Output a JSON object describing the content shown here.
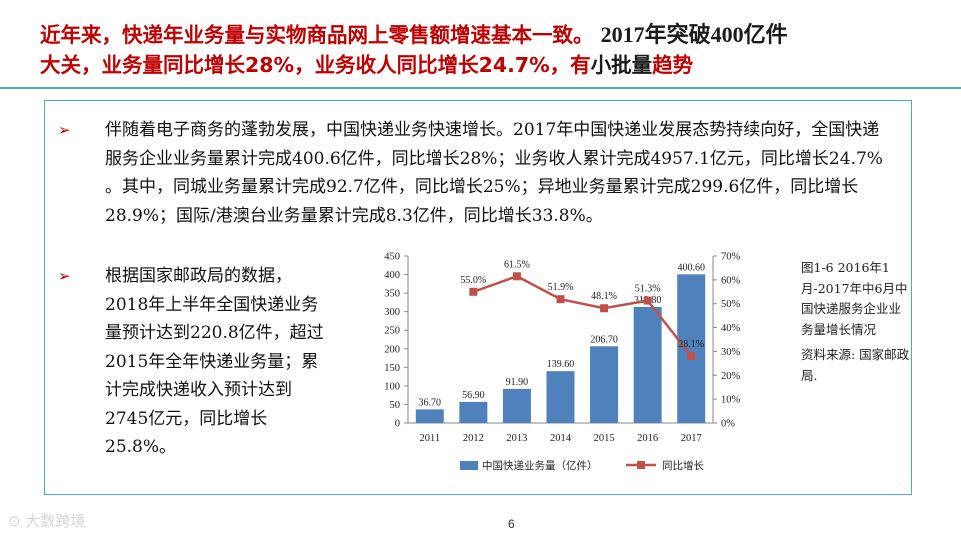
{
  "slide": {
    "title_part1": "近年来，快递年业务量与实物商品网上零售额增速基本一致。",
    "title_part2": "2017年突破400亿件",
    "title_line2a": "大关，业务量同比增长28%，业务收人同比增长24.7%，有",
    "title_line2b": "小批量",
    "title_line2c": "趋势",
    "bullet_mark": "➢",
    "bullet1": "伴随着电子商务的蓬勃发展，中国快递业务快速增长。2017年中国快递业发展态势持续向好，全国快递服务企业业务量累计完成400.6亿件，同比增长28%；业务收人累计完成4957.1亿元，同比增长24.7% 。其中，同城业务量累计完成92.7亿件，同比增长25%；异地业务量累计完成299.6亿件，同比增长28.9%；国际/港澳台业务量累计完成8.3亿件，同比增长33.8%。",
    "bullet2": "根据国家邮政局的数据，2018年上半年全国快递业务量预计达到220.8亿件，超过2015年全年快递业务量；累计完成快递收入预计达到2745亿元，同比增长25.8%。",
    "caption": "图1-6  2016年1月-2017年中6月中国快递服务企业业务量增长情况",
    "source": "资料来源: 国家邮政局.",
    "page_number": "6",
    "logo_text": "大数跨境"
  },
  "colors": {
    "title_red": "#c00000",
    "bar_blue": "#4f81bd",
    "line_red": "#c0504d",
    "accent_teal": "#4bacc6"
  },
  "chart_data": {
    "type": "bar",
    "categories": [
      "2011",
      "2012",
      "2013",
      "2014",
      "2015",
      "2016",
      "2017"
    ],
    "series": [
      {
        "name": "中国快递业务量（亿件）",
        "kind": "bar",
        "axis": "left",
        "values": [
          36.7,
          56.9,
          91.9,
          139.6,
          206.7,
          312.8,
          400.6
        ],
        "labels": [
          "36.70",
          "56.90",
          "91.90",
          "139.60",
          "206.70",
          "312.80",
          "400.60"
        ]
      },
      {
        "name": "同比增长",
        "kind": "line",
        "axis": "right",
        "values": [
          null,
          55.0,
          61.5,
          51.9,
          48.1,
          51.3,
          28.1
        ],
        "labels": [
          "",
          "55.0%",
          "61.5%",
          "51.9%",
          "48.1%",
          "51.3%",
          "28.1%"
        ]
      }
    ],
    "y_left": {
      "min": 0,
      "max": 450,
      "step": 50,
      "ticks": [
        "0",
        "50",
        "100",
        "150",
        "200",
        "250",
        "300",
        "350",
        "400",
        "450"
      ]
    },
    "y_right": {
      "min": 0,
      "max": 70,
      "step": 10,
      "ticks": [
        "0%",
        "10%",
        "20%",
        "30%",
        "40%",
        "50%",
        "60%",
        "70%"
      ]
    },
    "legend": [
      "中国快递业务量（亿件）",
      "同比增长"
    ],
    "legend_position": "bottom",
    "grid": false
  }
}
